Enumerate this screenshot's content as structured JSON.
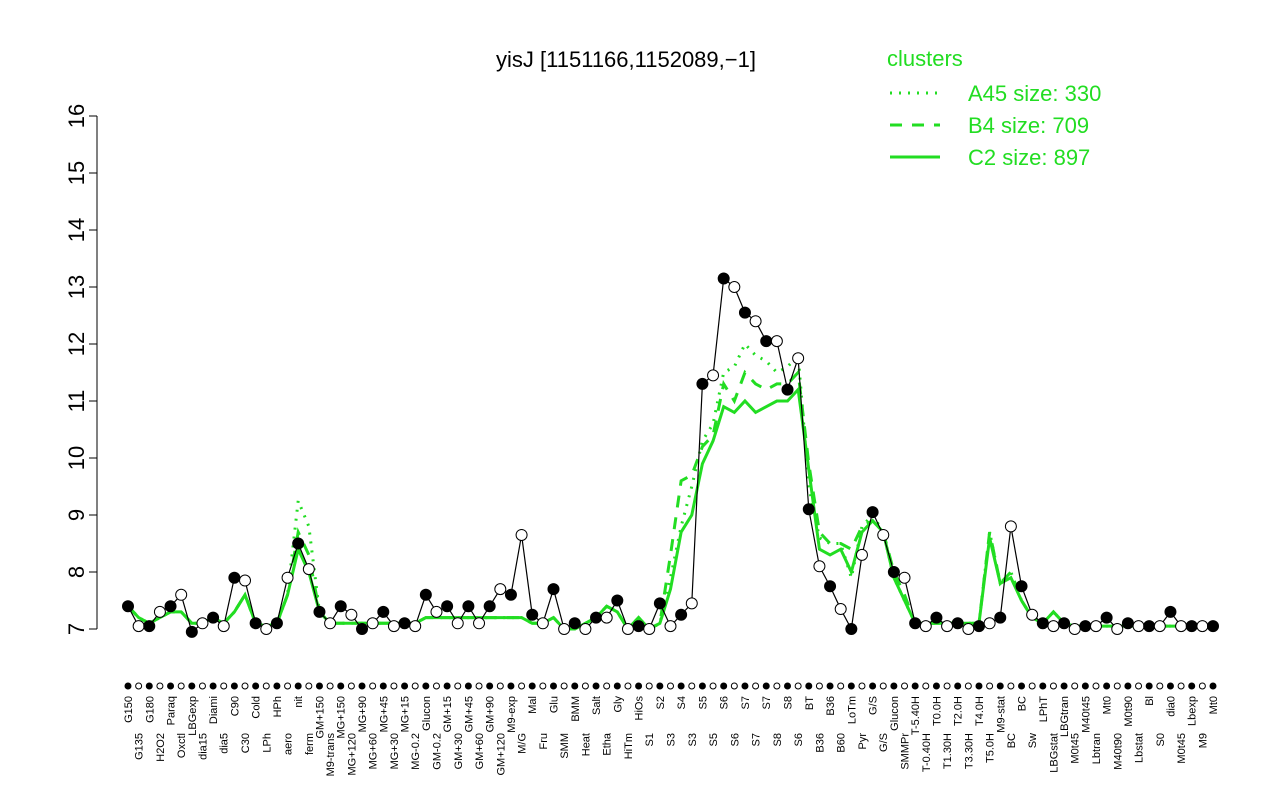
{
  "chart_data": {
    "type": "line",
    "title": "yisJ [1151166,1152089,−1]",
    "legend_title": "clusters",
    "legend_position": "top-right",
    "ylim": [
      7,
      16
    ],
    "yticks": [
      7,
      8,
      9,
      10,
      11,
      12,
      13,
      14,
      15,
      16
    ],
    "color": "#000000",
    "categories": [
      "G150",
      "G135",
      "G180",
      "H2O2",
      "Paraq",
      "Oxctl",
      "LBGexp",
      "dia15",
      "Diami",
      "dia5",
      "C90",
      "C30",
      "Cold",
      "LPh",
      "HPh",
      "aero",
      "nit",
      "ferm",
      "GM+150",
      "M9-trans",
      "MG+150",
      "MG+120",
      "MG+90",
      "MG+60",
      "MG+45",
      "MG+30",
      "MG+15",
      "MG-0.2",
      "Glucon",
      "GM-0.2",
      "GM+15",
      "GM+30",
      "GM+45",
      "GM+60",
      "GM+90",
      "GM+120",
      "M9-exp",
      "M/G",
      "Mal",
      "Fru",
      "Glu",
      "SMM",
      "BMM",
      "Heat",
      "Salt",
      "Etha",
      "Gly",
      "HiTm",
      "HiOs",
      "S1",
      "S2",
      "S3",
      "S4",
      "S3",
      "S5",
      "S5",
      "S6",
      "S6",
      "S7",
      "S7",
      "S7",
      "S8",
      "S8",
      "S6",
      "BT",
      "B36",
      "B36",
      "B60",
      "LoTm",
      "Pyr",
      "G/S",
      "G/S",
      "Glucon",
      "SMMPr",
      "T-5.40H",
      "T-0.40H",
      "T0.0H",
      "T1.30H",
      "T2.0H",
      "T3.30H",
      "T4.0H",
      "T5.0H",
      "M9-stat",
      "BC",
      "BC",
      "Sw",
      "LPhT",
      "LBGstat",
      "LBGtran",
      "M0t45",
      "M40t45",
      "Lbtran",
      "Mt0",
      "M40t90",
      "M0t90",
      "Lbstat",
      "Bl",
      "S0",
      "dia0",
      "M0t45",
      "Lbexp",
      "M9",
      "Mt0"
    ],
    "values": [
      7.4,
      7.05,
      7.05,
      7.3,
      7.4,
      7.6,
      6.95,
      7.1,
      7.2,
      7.05,
      7.9,
      7.85,
      7.1,
      7.0,
      7.1,
      7.9,
      8.5,
      8.05,
      7.3,
      7.1,
      7.4,
      7.25,
      7.0,
      7.1,
      7.3,
      7.05,
      7.1,
      7.05,
      7.6,
      7.3,
      7.4,
      7.1,
      7.4,
      7.1,
      7.4,
      7.7,
      7.6,
      8.65,
      7.25,
      7.1,
      7.7,
      7.0,
      7.1,
      7.0,
      7.2,
      7.2,
      7.5,
      7.0,
      7.05,
      7.0,
      7.45,
      7.05,
      7.25,
      7.45,
      11.3,
      11.45,
      13.15,
      13.0,
      12.55,
      12.4,
      12.05,
      12.05,
      11.2,
      11.75,
      9.1,
      8.1,
      7.75,
      7.35,
      7.0,
      8.3,
      9.05,
      8.65,
      8.0,
      7.9,
      7.1,
      7.05,
      7.2,
      7.05,
      7.1,
      7.0,
      7.05,
      7.1,
      7.2,
      8.8,
      7.75,
      7.25,
      7.1,
      7.05,
      7.1,
      7.0,
      7.05,
      7.05,
      7.2,
      7.0,
      7.1,
      7.05,
      7.05,
      7.05,
      7.3,
      7.05,
      7.05,
      7.05,
      7.05
    ],
    "series": [
      {
        "name": "A45 size: 330",
        "color": "#22dd22",
        "dash": "dotted",
        "values": [
          7.4,
          7.2,
          7.1,
          7.2,
          7.3,
          7.3,
          7.1,
          7.1,
          7.2,
          7.1,
          7.3,
          7.6,
          7.1,
          7.05,
          7.1,
          7.6,
          9.25,
          8.8,
          7.3,
          7.1,
          7.1,
          7.1,
          7.1,
          7.1,
          7.1,
          7.1,
          7.1,
          7.1,
          7.2,
          7.2,
          7.2,
          7.2,
          7.2,
          7.2,
          7.2,
          7.2,
          7.2,
          7.2,
          7.1,
          7.1,
          7.2,
          7.0,
          7.0,
          7.1,
          7.2,
          7.4,
          7.3,
          7.0,
          7.2,
          7.0,
          7.1,
          7.9,
          8.8,
          9.5,
          10.3,
          10.6,
          11.5,
          11.6,
          12.0,
          11.8,
          11.7,
          11.5,
          11.6,
          11.8,
          9.5,
          8.6,
          8.5,
          8.5,
          7.9,
          8.8,
          9.0,
          8.7,
          7.9,
          7.5,
          7.1,
          7.1,
          7.1,
          7.1,
          7.1,
          7.1,
          7.1,
          8.7,
          7.8,
          8.0,
          7.5,
          7.2,
          7.1,
          7.3,
          7.1,
          7.05,
          7.05,
          7.05,
          7.05,
          7.05,
          7.05,
          7.05,
          7.05,
          7.05,
          7.05,
          7.05,
          7.05,
          7.05,
          7.05
        ]
      },
      {
        "name": "B4 size: 709",
        "color": "#22dd22",
        "dash": "dashed",
        "values": [
          7.4,
          7.2,
          7.1,
          7.2,
          7.3,
          7.3,
          7.1,
          7.1,
          7.2,
          7.1,
          7.3,
          7.6,
          7.1,
          7.05,
          7.1,
          7.6,
          8.7,
          8.3,
          7.3,
          7.1,
          7.1,
          7.1,
          7.1,
          7.1,
          7.1,
          7.1,
          7.1,
          7.1,
          7.2,
          7.2,
          7.2,
          7.2,
          7.2,
          7.2,
          7.2,
          7.2,
          7.2,
          7.2,
          7.1,
          7.1,
          7.2,
          7.0,
          7.0,
          7.1,
          7.2,
          7.4,
          7.3,
          7.0,
          7.2,
          7.0,
          7.1,
          8.3,
          9.6,
          9.7,
          10.2,
          10.4,
          11.3,
          11.0,
          11.5,
          11.3,
          11.2,
          11.3,
          11.3,
          11.5,
          9.9,
          8.7,
          8.5,
          8.5,
          8.4,
          8.8,
          8.9,
          8.7,
          8.0,
          7.6,
          7.1,
          7.1,
          7.1,
          7.1,
          7.1,
          7.1,
          7.1,
          8.7,
          7.8,
          8.0,
          7.5,
          7.2,
          7.1,
          7.3,
          7.1,
          7.05,
          7.05,
          7.05,
          7.05,
          7.05,
          7.05,
          7.05,
          7.05,
          7.05,
          7.05,
          7.05,
          7.05,
          7.05,
          7.05
        ]
      },
      {
        "name": "C2 size: 897",
        "color": "#22dd22",
        "dash": "solid",
        "values": [
          7.4,
          7.2,
          7.1,
          7.2,
          7.3,
          7.3,
          7.1,
          7.1,
          7.2,
          7.1,
          7.3,
          7.6,
          7.1,
          7.05,
          7.1,
          7.6,
          8.4,
          8.0,
          7.3,
          7.1,
          7.1,
          7.1,
          7.1,
          7.1,
          7.1,
          7.1,
          7.1,
          7.1,
          7.2,
          7.2,
          7.2,
          7.2,
          7.2,
          7.2,
          7.2,
          7.2,
          7.2,
          7.2,
          7.1,
          7.1,
          7.2,
          7.0,
          7.0,
          7.1,
          7.2,
          7.4,
          7.3,
          7.0,
          7.2,
          7.0,
          7.1,
          7.7,
          8.7,
          9.0,
          9.9,
          10.3,
          10.9,
          10.8,
          11.0,
          10.8,
          10.9,
          11.0,
          11.0,
          11.2,
          9.8,
          8.4,
          8.3,
          8.4,
          8.0,
          8.7,
          8.9,
          8.7,
          7.9,
          7.5,
          7.1,
          7.1,
          7.1,
          7.1,
          7.1,
          7.1,
          7.1,
          8.6,
          7.8,
          7.9,
          7.5,
          7.2,
          7.1,
          7.3,
          7.1,
          7.05,
          7.05,
          7.05,
          7.05,
          7.05,
          7.05,
          7.05,
          7.05,
          7.05,
          7.05,
          7.05,
          7.05,
          7.05,
          7.05
        ]
      }
    ]
  }
}
